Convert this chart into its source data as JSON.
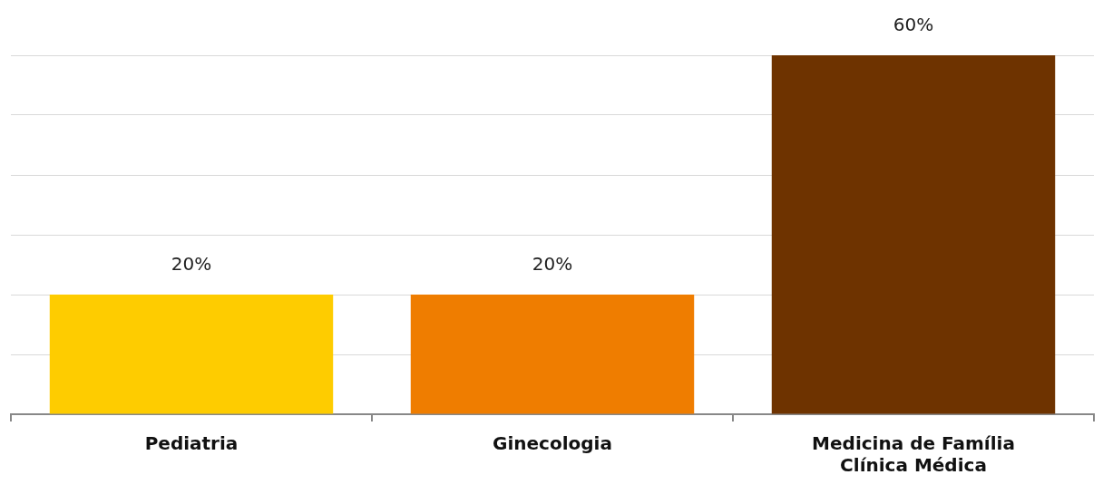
{
  "chart_data": {
    "type": "bar",
    "categories": [
      "Pediatria",
      "Ginecologia",
      "Medicina de Família\nClínica Médica"
    ],
    "values": [
      20,
      20,
      60
    ],
    "colors": [
      "#fecc00",
      "#ef7d00",
      "#6e3300"
    ],
    "value_labels": [
      "20%",
      "20%",
      "60%"
    ],
    "ylim": [
      0,
      60
    ],
    "yticks": [
      {
        "value": 0,
        "label": null
      },
      {
        "value": 10,
        "label": null
      },
      {
        "value": 20,
        "label": null
      },
      {
        "value": 30,
        "label": null
      },
      {
        "value": 40,
        "label": null
      },
      {
        "value": 50,
        "label": null
      },
      {
        "value": 60,
        "label": null
      }
    ],
    "grid": "y",
    "tick_labels": "x",
    "legend": false
  }
}
